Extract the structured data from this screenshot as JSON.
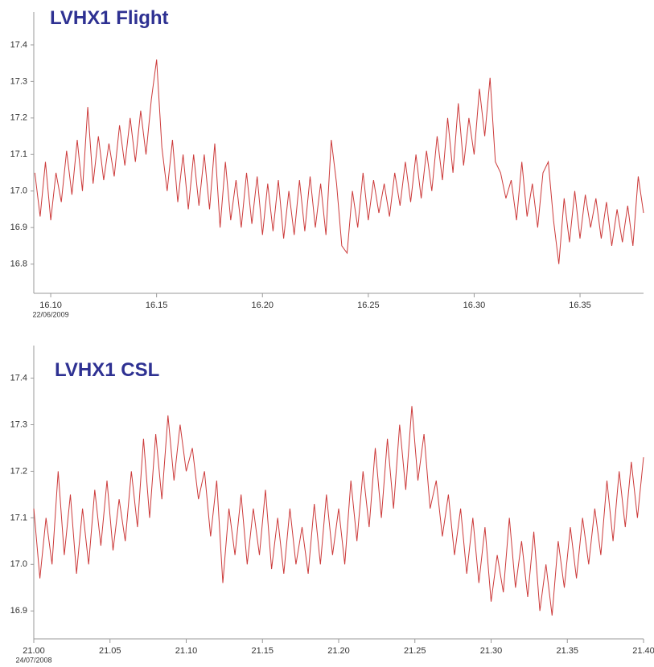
{
  "chart_data": [
    {
      "type": "line",
      "title": "LVHX1 Flight",
      "date_label": "22/06/2009",
      "color": "#cc3a3a",
      "xlim": [
        16.092,
        16.38
      ],
      "ylim": [
        16.72,
        17.49
      ],
      "xticks": [
        {
          "value": 16.1,
          "label": "16.10"
        },
        16.15,
        {
          "value": 16.2,
          "label": "16.20"
        },
        16.25,
        {
          "value": 16.3,
          "label": "16.30"
        },
        16.35
      ],
      "yticks": [
        16.8,
        16.9,
        {
          "value": 17,
          "label": "17.0"
        },
        17.1,
        17.2,
        17.3,
        17.4
      ],
      "x": [
        16.0925,
        16.095,
        16.0975,
        16.1,
        16.1025,
        16.105,
        16.1075,
        16.11,
        16.1125,
        16.115,
        16.1175,
        16.12,
        16.1225,
        16.125,
        16.1275,
        16.13,
        16.1325,
        16.135,
        16.1375,
        16.14,
        16.1425,
        16.145,
        16.1475,
        16.15,
        16.1525,
        16.155,
        16.1575,
        16.16,
        16.1625,
        16.165,
        16.1675,
        16.17,
        16.1725,
        16.175,
        16.1775,
        16.18,
        16.1825,
        16.185,
        16.1875,
        16.19,
        16.1925,
        16.195,
        16.1975,
        16.2,
        16.2025,
        16.205,
        16.2075,
        16.21,
        16.2125,
        16.215,
        16.2175,
        16.22,
        16.2225,
        16.225,
        16.2275,
        16.23,
        16.2325,
        16.235,
        16.2375,
        16.24,
        16.2425,
        16.245,
        16.2475,
        16.25,
        16.2525,
        16.255,
        16.2575,
        16.26,
        16.2625,
        16.265,
        16.2675,
        16.27,
        16.2725,
        16.275,
        16.2775,
        16.28,
        16.2825,
        16.285,
        16.2875,
        16.29,
        16.2925,
        16.295,
        16.2975,
        16.3,
        16.3025,
        16.305,
        16.3075,
        16.31,
        16.3125,
        16.315,
        16.3175,
        16.32,
        16.3225,
        16.325,
        16.3275,
        16.33,
        16.3325,
        16.335,
        16.3375,
        16.34,
        16.3425,
        16.345,
        16.3475,
        16.35,
        16.3525,
        16.355,
        16.3575,
        16.36,
        16.3625,
        16.365,
        16.3675,
        16.37,
        16.3725,
        16.375,
        16.3775,
        16.38
      ],
      "values": [
        17.05,
        16.93,
        17.08,
        16.92,
        17.05,
        16.97,
        17.11,
        16.99,
        17.14,
        17.0,
        17.23,
        17.02,
        17.15,
        17.03,
        17.13,
        17.04,
        17.18,
        17.07,
        17.2,
        17.08,
        17.22,
        17.1,
        17.25,
        17.36,
        17.12,
        17.0,
        17.14,
        16.97,
        17.1,
        16.95,
        17.1,
        16.96,
        17.1,
        16.95,
        17.13,
        16.9,
        17.08,
        16.92,
        17.03,
        16.9,
        17.05,
        16.91,
        17.04,
        16.88,
        17.02,
        16.89,
        17.03,
        16.87,
        17.0,
        16.88,
        17.03,
        16.89,
        17.04,
        16.9,
        17.02,
        16.88,
        17.14,
        17.02,
        16.85,
        16.83,
        17.0,
        16.9,
        17.05,
        16.92,
        17.03,
        16.94,
        17.02,
        16.93,
        17.05,
        16.96,
        17.08,
        16.97,
        17.1,
        16.98,
        17.11,
        17.0,
        17.15,
        17.03,
        17.2,
        17.05,
        17.24,
        17.07,
        17.2,
        17.1,
        17.28,
        17.15,
        17.31,
        17.08,
        17.05,
        16.98,
        17.03,
        16.92,
        17.08,
        16.93,
        17.02,
        16.9,
        17.05,
        17.08,
        16.92,
        16.8,
        16.98,
        16.86,
        17.0,
        16.87,
        16.99,
        16.9,
        16.98,
        16.87,
        16.97,
        16.85,
        16.95,
        16.86,
        16.96,
        16.85,
        17.04,
        16.94
      ]
    },
    {
      "type": "line",
      "title": "LVHX1 CSL",
      "date_label": "24/07/2008",
      "color": "#cc3a3a",
      "xlim": [
        21.0,
        21.4
      ],
      "ylim": [
        16.84,
        17.47
      ],
      "xticks": [
        {
          "value": 21,
          "label": "21.00"
        },
        21.05,
        {
          "value": 21.1,
          "label": "21.10"
        },
        21.15,
        {
          "value": 21.2,
          "label": "21.20"
        },
        21.25,
        {
          "value": 21.3,
          "label": "21.30"
        },
        21.35,
        {
          "value": 21.4,
          "label": "21.40"
        }
      ],
      "yticks": [
        16.9,
        {
          "value": 17,
          "label": "17.0"
        },
        17.1,
        17.2,
        17.3,
        17.4
      ],
      "x": [
        21.0,
        21.004,
        21.008,
        21.012,
        21.016,
        21.02,
        21.024,
        21.028,
        21.032,
        21.036,
        21.04,
        21.044,
        21.048,
        21.052,
        21.056,
        21.06,
        21.064,
        21.068,
        21.072,
        21.076,
        21.08,
        21.084,
        21.088,
        21.092,
        21.096,
        21.1,
        21.104,
        21.108,
        21.112,
        21.116,
        21.12,
        21.124,
        21.128,
        21.132,
        21.136,
        21.14,
        21.144,
        21.148,
        21.152,
        21.156,
        21.16,
        21.164,
        21.168,
        21.172,
        21.176,
        21.18,
        21.184,
        21.188,
        21.192,
        21.196,
        21.2,
        21.204,
        21.208,
        21.212,
        21.216,
        21.22,
        21.224,
        21.228,
        21.232,
        21.236,
        21.24,
        21.244,
        21.248,
        21.252,
        21.256,
        21.26,
        21.264,
        21.268,
        21.272,
        21.276,
        21.28,
        21.284,
        21.288,
        21.292,
        21.296,
        21.3,
        21.304,
        21.308,
        21.312,
        21.316,
        21.32,
        21.324,
        21.328,
        21.332,
        21.336,
        21.34,
        21.344,
        21.348,
        21.352,
        21.356,
        21.36,
        21.364,
        21.368,
        21.372,
        21.376,
        21.38,
        21.384,
        21.388,
        21.392,
        21.396,
        21.4
      ],
      "values": [
        17.12,
        16.97,
        17.1,
        17.0,
        17.2,
        17.02,
        17.15,
        16.98,
        17.12,
        17.0,
        17.16,
        17.04,
        17.18,
        17.03,
        17.14,
        17.05,
        17.2,
        17.08,
        17.27,
        17.1,
        17.28,
        17.14,
        17.32,
        17.18,
        17.3,
        17.2,
        17.25,
        17.14,
        17.2,
        17.06,
        17.18,
        16.96,
        17.12,
        17.02,
        17.15,
        17.0,
        17.12,
        17.02,
        17.16,
        16.99,
        17.1,
        16.98,
        17.12,
        17.0,
        17.08,
        16.98,
        17.13,
        17.0,
        17.15,
        17.02,
        17.12,
        17.0,
        17.18,
        17.05,
        17.2,
        17.08,
        17.25,
        17.1,
        17.27,
        17.12,
        17.3,
        17.16,
        17.34,
        17.18,
        17.28,
        17.12,
        17.18,
        17.06,
        17.15,
        17.02,
        17.12,
        16.98,
        17.1,
        16.96,
        17.08,
        16.92,
        17.02,
        16.94,
        17.1,
        16.95,
        17.05,
        16.93,
        17.07,
        16.9,
        17.0,
        16.89,
        17.05,
        16.95,
        17.08,
        16.97,
        17.1,
        17.0,
        17.12,
        17.02,
        17.18,
        17.05,
        17.2,
        17.08,
        17.22,
        17.1,
        17.23
      ]
    }
  ]
}
